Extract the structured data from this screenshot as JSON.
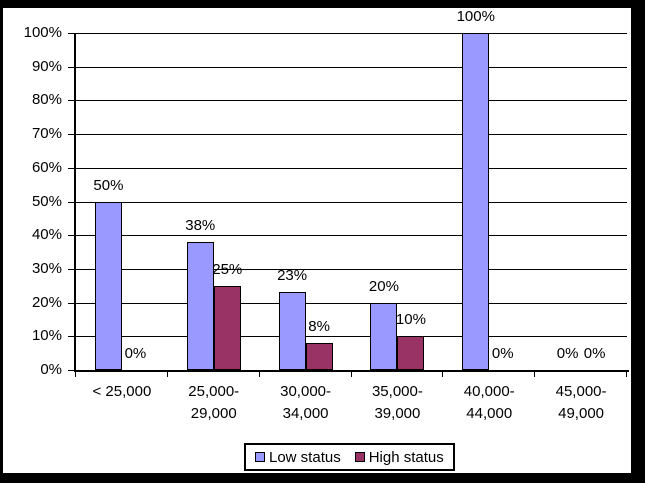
{
  "chart_data": {
    "type": "bar",
    "title": "",
    "categories": [
      "< 25,000",
      "25,000-\n29,000",
      "30,000-\n34,000",
      "35,000-\n39,000",
      "40,000-\n44,000",
      "45,000-\n49,000"
    ],
    "series": [
      {
        "name": "Low status",
        "color": "#9999FF",
        "values": [
          50,
          38,
          23,
          20,
          100,
          0
        ]
      },
      {
        "name": "High status",
        "color": "#993366",
        "values": [
          0,
          25,
          8,
          10,
          0,
          0
        ]
      }
    ],
    "data_labels": [
      [
        "50%",
        "38%",
        "23%",
        "20%",
        "100%",
        "0%"
      ],
      [
        "0%",
        "25%",
        "8%",
        "10%",
        "0%",
        "0%"
      ]
    ],
    "y_axis": {
      "min": 0,
      "max": 100,
      "step": 10,
      "tick_labels": [
        "0%",
        "10%",
        "20%",
        "30%",
        "40%",
        "50%",
        "60%",
        "70%",
        "80%",
        "90%",
        "100%"
      ]
    },
    "xlabel": "",
    "ylabel": "",
    "grid": true,
    "legend_position": "bottom",
    "legend_entries": [
      "Low status",
      "High status"
    ],
    "colors": {
      "plot_background": "#FFFFFF",
      "frame": "#000000",
      "gridline": "#000000",
      "text": "#000000"
    }
  }
}
